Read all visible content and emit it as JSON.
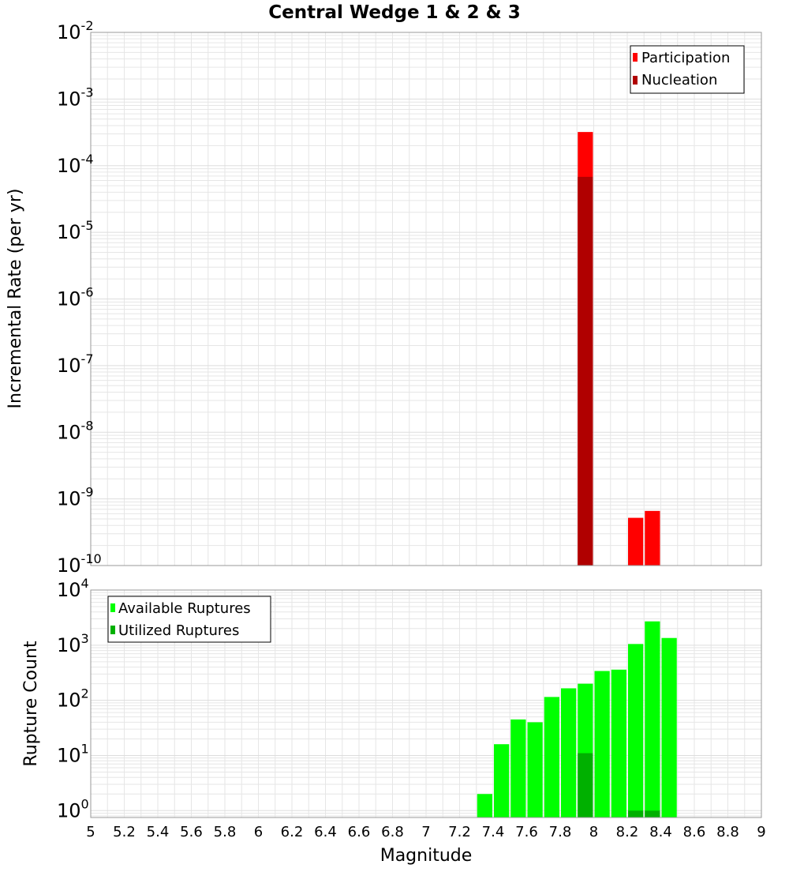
{
  "title": "Central Wedge 1 & 2 & 3",
  "colors": {
    "participation": "#ff0000",
    "nucleation": "#b00000",
    "available": "#00ff00",
    "utilized": "#00b000",
    "grid": "#e6e6e6"
  },
  "chart_data": [
    {
      "type": "bar",
      "title": "Central Wedge 1 & 2 & 3",
      "xlabel": "",
      "ylabel": "Incremental Rate (per yr)",
      "y_scale": "log",
      "ylim": [
        1e-10,
        0.01
      ],
      "xlim": [
        5,
        9
      ],
      "bar_width": 0.1,
      "grid": true,
      "legend_position": "top-right",
      "series": [
        {
          "name": "Participation",
          "color": "#ff0000",
          "x": [
            7.95,
            8.25,
            8.35
          ],
          "values": [
            0.00032,
            5.2e-10,
            6.6e-10
          ]
        },
        {
          "name": "Nucleation",
          "color": "#b00000",
          "x": [
            7.95
          ],
          "values": [
            6.8e-05
          ]
        }
      ]
    },
    {
      "type": "bar",
      "title": "",
      "xlabel": "Magnitude",
      "ylabel": "Rupture Count",
      "y_scale": "log",
      "ylim": [
        0.75,
        10000
      ],
      "xlim": [
        5,
        9
      ],
      "bar_width": 0.1,
      "grid": true,
      "legend_position": "top-left",
      "series": [
        {
          "name": "Available Ruptures",
          "color": "#00ff00",
          "x": [
            7.35,
            7.45,
            7.55,
            7.65,
            7.75,
            7.85,
            7.95,
            8.05,
            8.15,
            8.25,
            8.35,
            8.45
          ],
          "values": [
            2,
            16,
            45,
            40,
            115,
            165,
            200,
            340,
            360,
            1050,
            2700,
            1350
          ]
        },
        {
          "name": "Utilized Ruptures",
          "color": "#00b000",
          "x": [
            7.95,
            8.25,
            8.35
          ],
          "values": [
            11,
            1,
            1
          ]
        }
      ]
    }
  ],
  "x_ticks": [
    "5",
    "5.2",
    "5.4",
    "5.6",
    "5.8",
    "6",
    "6.2",
    "6.4",
    "6.6",
    "6.8",
    "7",
    "7.2",
    "7.4",
    "7.6",
    "7.8",
    "8",
    "8.2",
    "8.4",
    "8.6",
    "8.8",
    "9"
  ],
  "top_y_ticks": [
    {
      "base": "10",
      "exp": "-2"
    },
    {
      "base": "10",
      "exp": "-3"
    },
    {
      "base": "10",
      "exp": "-4"
    },
    {
      "base": "10",
      "exp": "-5"
    },
    {
      "base": "10",
      "exp": "-6"
    },
    {
      "base": "10",
      "exp": "-7"
    },
    {
      "base": "10",
      "exp": "-8"
    },
    {
      "base": "10",
      "exp": "-9"
    },
    {
      "base": "10",
      "exp": "-10"
    }
  ],
  "bottom_y_ticks": [
    {
      "base": "10",
      "exp": "4"
    },
    {
      "base": "10",
      "exp": "3"
    },
    {
      "base": "10",
      "exp": "2"
    },
    {
      "base": "10",
      "exp": "1"
    },
    {
      "base": "10",
      "exp": "0"
    }
  ]
}
